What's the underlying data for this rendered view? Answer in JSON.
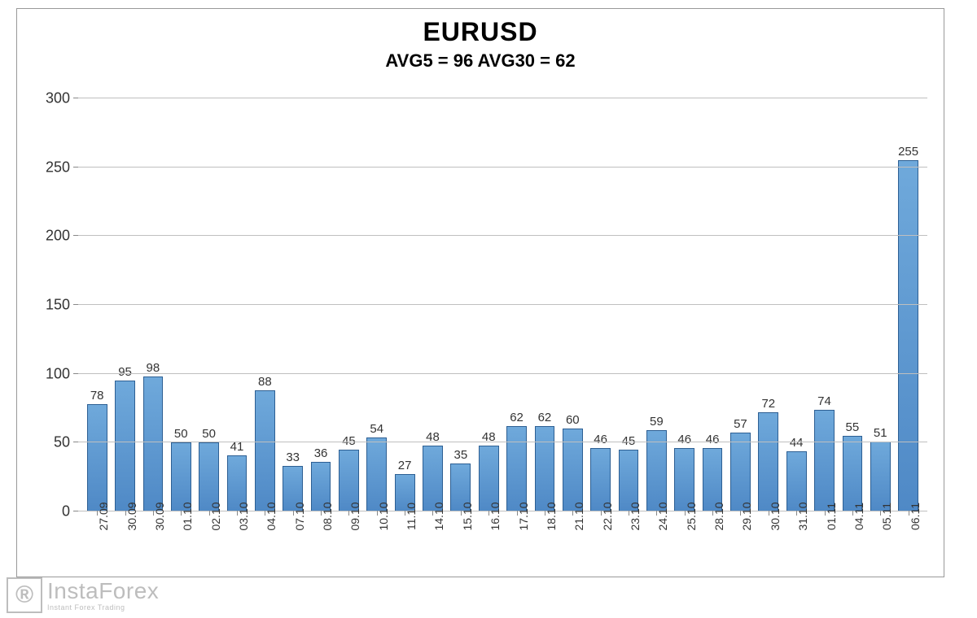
{
  "chart": {
    "type": "bar",
    "title": "EURUSD",
    "subtitle": "AVG5 = 96 AVG30 = 62",
    "title_fontsize": 32,
    "subtitle_fontsize": 22,
    "title_color": "#000000",
    "background_color": "#ffffff",
    "border_color": "#999999",
    "grid_color": "#bfbfbf",
    "axis_color": "#888888",
    "bar_fill_top": "#6fa9db",
    "bar_fill_bottom": "#4f89c6",
    "bar_border": "#2d5f93",
    "bar_width_ratio": 0.72,
    "ylim": [
      0,
      300
    ],
    "ytick_step": 50,
    "yticks": [
      0,
      50,
      100,
      150,
      200,
      250,
      300
    ],
    "label_fontsize": 18,
    "value_label_fontsize": 15,
    "x_label_fontsize": 14,
    "x_label_rotation": -90,
    "categories": [
      "27.09",
      "30.09",
      "30.09",
      "01.10",
      "02.10",
      "03.10",
      "04.10",
      "07.10",
      "08.10",
      "09.10",
      "10.10",
      "11.10",
      "14.10",
      "15.10",
      "16.10",
      "17.10",
      "18.10",
      "21.10",
      "22.10",
      "23.10",
      "24.10",
      "25.10",
      "28.10",
      "29.10",
      "30.10",
      "31.10",
      "01.11",
      "04.11",
      "05.11",
      "06.11"
    ],
    "values": [
      78,
      95,
      98,
      50,
      50,
      41,
      88,
      33,
      36,
      45,
      54,
      27,
      48,
      35,
      48,
      62,
      62,
      60,
      46,
      45,
      59,
      46,
      46,
      57,
      72,
      44,
      74,
      55,
      51,
      255
    ]
  },
  "watermark": {
    "glyph": "®",
    "main": "InstaForex",
    "sub": "Instant Forex Trading",
    "color": "#888888",
    "opacity": 0.55
  }
}
